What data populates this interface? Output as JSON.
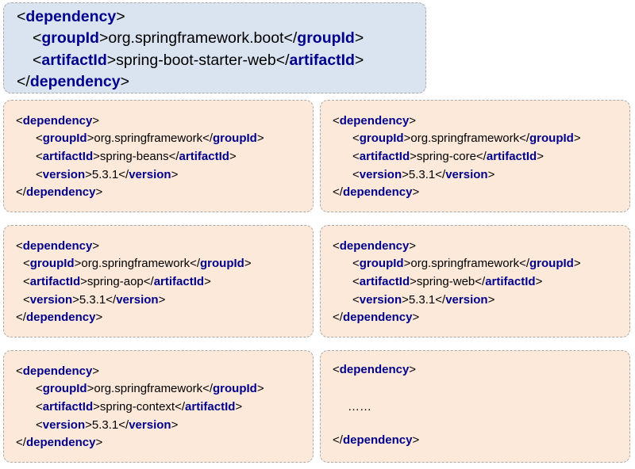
{
  "main": {
    "open_bracket": "<",
    "close_bracket": ">",
    "end_open": "</",
    "tag_dependency": "dependency",
    "tag_groupId": "groupId",
    "tag_artifactId": "artifactId",
    "groupId": "org.springframework.boot",
    "artifactId": "spring-boot-starter-web"
  },
  "deps": [
    {
      "groupId": "org.springframework",
      "artifactId": "spring-beans",
      "version": "5.3.1"
    },
    {
      "groupId": "org.springframework",
      "artifactId": "spring-core",
      "version": "5.3.1"
    },
    {
      "groupId": "org.springframework",
      "artifactId": "spring-aop",
      "version": "5.3.1"
    },
    {
      "groupId": "org.springframework",
      "artifactId": "spring-web",
      "version": "5.3.1"
    },
    {
      "groupId": "org.springframework",
      "artifactId": "spring-context",
      "version": "5.3.1"
    }
  ],
  "tags": {
    "dependency": "dependency",
    "groupId": "groupId",
    "artifactId": "artifactId",
    "version": "version"
  },
  "placeholder": {
    "ellipsis": "……"
  }
}
